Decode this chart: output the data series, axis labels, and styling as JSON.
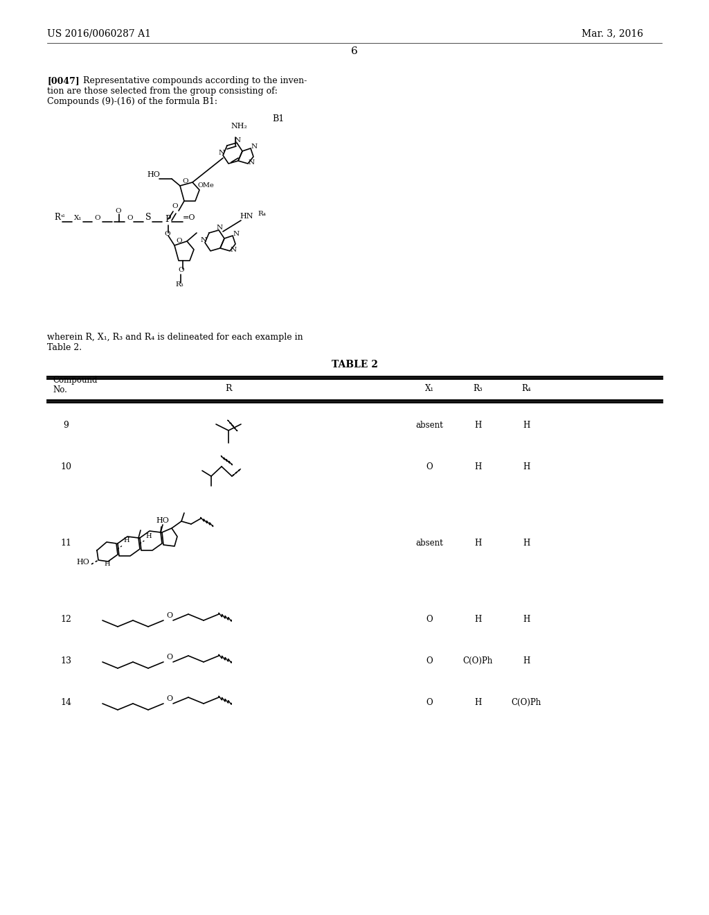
{
  "bg_color": "#ffffff",
  "header_left": "US 2016/0060287 A1",
  "header_right": "Mar. 3, 2016",
  "page_number": "6",
  "para_bold": "[0047]",
  "para_text1": "Representative compounds according to the inven-",
  "para_text2": "tion are those selected from the group consisting of:",
  "para_text3": "Compounds (9)-(16) of the formula B1:",
  "formula_label": "B1",
  "wherein_line1": "wherein R, X₁, R₃ and R₄ is delineated for each example in",
  "wherein_line2": "Table 2.",
  "table_title": "TABLE 2",
  "rows": [
    {
      "no": "9",
      "x1": "absent",
      "r3": "H",
      "r4": "H"
    },
    {
      "no": "10",
      "x1": "O",
      "r3": "H",
      "r4": "H"
    },
    {
      "no": "11",
      "x1": "absent",
      "r3": "H",
      "r4": "H"
    },
    {
      "no": "12",
      "x1": "O",
      "r3": "H",
      "r4": "H"
    },
    {
      "no": "13",
      "x1": "O",
      "r3": "C(O)Ph",
      "r4": "H"
    },
    {
      "no": "14",
      "x1": "O",
      "r3": "H",
      "r4": "C(O)Ph"
    }
  ]
}
